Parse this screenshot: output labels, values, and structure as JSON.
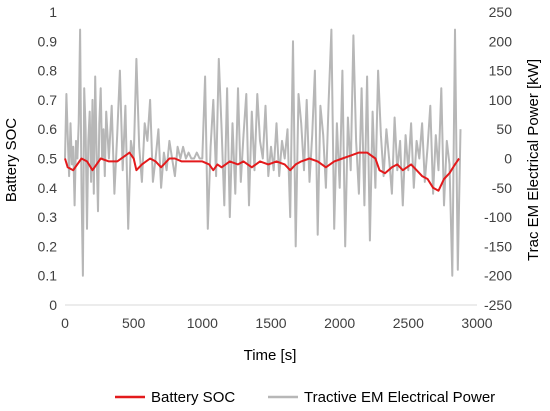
{
  "chart_data": {
    "type": "line",
    "xlabel": "Time [s]",
    "ylabel_left": "Battery SOC",
    "ylabel_right": "Trac EM Electrical Power [kW]",
    "xlim": [
      0,
      3000
    ],
    "ylim_left": [
      0,
      1
    ],
    "ylim_right": [
      -250,
      250
    ],
    "x_ticks": [
      0,
      500,
      1000,
      1500,
      2000,
      2500,
      3000
    ],
    "y_left_ticks": [
      0,
      0.1,
      0.2,
      0.3,
      0.4,
      0.5,
      0.6,
      0.7,
      0.8,
      0.9,
      1
    ],
    "y_right_ticks": [
      -250,
      -200,
      -150,
      -100,
      -50,
      0,
      50,
      100,
      150,
      200,
      250
    ],
    "grid": false,
    "legend": "bottom",
    "series": [
      {
        "name": "Battery SOC",
        "axis": "left",
        "color": "#e31a1c",
        "x": [
          0,
          20,
          60,
          120,
          160,
          200,
          260,
          320,
          380,
          440,
          470,
          500,
          520,
          560,
          620,
          660,
          700,
          760,
          800,
          850,
          900,
          1000,
          1050,
          1080,
          1110,
          1140,
          1200,
          1260,
          1300,
          1360,
          1420,
          1480,
          1540,
          1600,
          1640,
          1680,
          1720,
          1780,
          1840,
          1900,
          1960,
          2020,
          2080,
          2140,
          2200,
          2260,
          2290,
          2330,
          2380,
          2420,
          2460,
          2520,
          2560,
          2600,
          2640,
          2680,
          2720,
          2760,
          2800,
          2840,
          2870
        ],
        "y": [
          0.5,
          0.47,
          0.46,
          0.5,
          0.49,
          0.46,
          0.5,
          0.49,
          0.49,
          0.51,
          0.52,
          0.5,
          0.46,
          0.48,
          0.5,
          0.49,
          0.47,
          0.5,
          0.5,
          0.49,
          0.49,
          0.49,
          0.48,
          0.46,
          0.48,
          0.47,
          0.49,
          0.48,
          0.49,
          0.47,
          0.49,
          0.48,
          0.49,
          0.48,
          0.46,
          0.48,
          0.49,
          0.5,
          0.49,
          0.47,
          0.49,
          0.5,
          0.51,
          0.52,
          0.52,
          0.5,
          0.46,
          0.45,
          0.47,
          0.48,
          0.46,
          0.48,
          0.46,
          0.44,
          0.43,
          0.4,
          0.39,
          0.43,
          0.45,
          0.48,
          0.5
        ]
      },
      {
        "name": "Tractive EM Electrical Power",
        "axis": "right",
        "color": "#b7b7b7",
        "x": [
          0,
          10,
          20,
          30,
          40,
          50,
          60,
          70,
          80,
          90,
          100,
          110,
          120,
          130,
          140,
          150,
          160,
          170,
          180,
          190,
          200,
          210,
          220,
          230,
          240,
          250,
          260,
          270,
          280,
          290,
          300,
          320,
          340,
          360,
          380,
          400,
          420,
          440,
          460,
          480,
          500,
          520,
          540,
          560,
          580,
          600,
          620,
          640,
          660,
          680,
          700,
          720,
          740,
          760,
          780,
          800,
          820,
          840,
          860,
          880,
          900,
          920,
          940,
          960,
          980,
          1000,
          1020,
          1040,
          1060,
          1080,
          1100,
          1120,
          1140,
          1160,
          1180,
          1200,
          1220,
          1240,
          1260,
          1280,
          1300,
          1320,
          1340,
          1360,
          1380,
          1400,
          1420,
          1440,
          1460,
          1480,
          1500,
          1520,
          1540,
          1560,
          1580,
          1600,
          1620,
          1640,
          1660,
          1680,
          1700,
          1720,
          1740,
          1760,
          1780,
          1800,
          1820,
          1840,
          1860,
          1880,
          1900,
          1920,
          1940,
          1960,
          1980,
          2000,
          2020,
          2040,
          2060,
          2080,
          2100,
          2120,
          2140,
          2160,
          2180,
          2200,
          2220,
          2240,
          2260,
          2280,
          2300,
          2320,
          2340,
          2360,
          2380,
          2400,
          2420,
          2440,
          2460,
          2480,
          2500,
          2520,
          2540,
          2560,
          2580,
          2600,
          2620,
          2640,
          2660,
          2680,
          2700,
          2720,
          2740,
          2760,
          2780,
          2800,
          2820,
          2840,
          2860,
          2880
        ],
        "y": [
          0,
          110,
          40,
          -30,
          60,
          -10,
          20,
          -80,
          30,
          0,
          60,
          220,
          -50,
          -200,
          120,
          50,
          -120,
          30,
          80,
          -40,
          100,
          -60,
          140,
          10,
          -90,
          60,
          120,
          0,
          50,
          -30,
          80,
          0,
          90,
          -60,
          40,
          150,
          -20,
          90,
          -120,
          30,
          0,
          170,
          20,
          -40,
          60,
          30,
          100,
          -40,
          0,
          50,
          -50,
          10,
          -20,
          30,
          0,
          -30,
          20,
          0,
          20,
          0,
          10,
          0,
          0,
          10,
          0,
          0,
          140,
          -120,
          20,
          100,
          -30,
          170,
          50,
          -80,
          120,
          -100,
          60,
          -60,
          120,
          -40,
          40,
          110,
          -80,
          80,
          -20,
          110,
          30,
          0,
          90,
          -30,
          20,
          -20,
          60,
          -30,
          30,
          0,
          50,
          -100,
          200,
          -150,
          110,
          60,
          -20,
          100,
          -40,
          40,
          150,
          -130,
          90,
          40,
          -50,
          100,
          220,
          -120,
          60,
          -50,
          150,
          -150,
          70,
          -20,
          210,
          30,
          -60,
          120,
          -80,
          140,
          -140,
          80,
          -50,
          150,
          40,
          -30,
          50,
          0,
          -60,
          70,
          -20,
          30,
          -80,
          40,
          -20,
          60,
          -50,
          30,
          0,
          60,
          -40,
          20,
          90,
          -60,
          40,
          -20,
          120,
          -80,
          30,
          -10,
          -200,
          220,
          -190,
          50
        ]
      }
    ]
  }
}
